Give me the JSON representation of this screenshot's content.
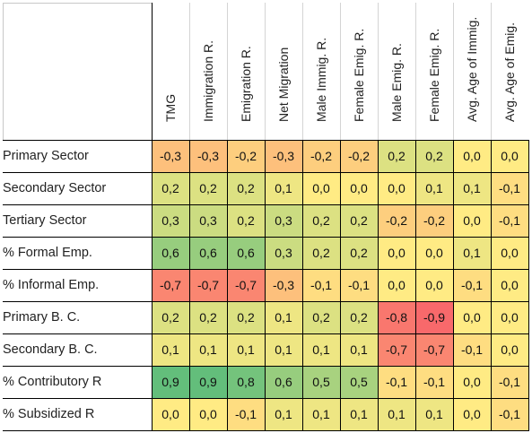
{
  "chart_data": {
    "type": "heatmap",
    "columns": [
      "TMG",
      "Immigration R.",
      "Emigration R.",
      "Net Migration",
      "Male Immig. R.",
      "Female Emig. R.",
      "Male Emig. R.",
      "Female Emig. R.",
      "Avg. Age of Immig.",
      "Avg. Age of Emig."
    ],
    "rows": [
      {
        "label": "Primary Sector",
        "values": [
          -0.3,
          -0.3,
          -0.2,
          -0.3,
          -0.2,
          -0.2,
          0.2,
          0.2,
          0.0,
          0.0
        ],
        "text": [
          "-0,3",
          "-0,3",
          "-0,2",
          "-0,3",
          "-0,2",
          "-0,2",
          "0,2",
          "0,2",
          "0,0",
          "0,0"
        ]
      },
      {
        "label": "Secondary Sector",
        "values": [
          0.2,
          0.2,
          0.2,
          0.1,
          0.0,
          0.0,
          0.0,
          0.1,
          0.1,
          -0.1
        ],
        "text": [
          "0,2",
          "0,2",
          "0,2",
          "0,1",
          "0,0",
          "0,0",
          "0,0",
          "0,1",
          "0,1",
          "-0,1"
        ]
      },
      {
        "label": "Tertiary Sector",
        "values": [
          0.3,
          0.3,
          0.2,
          0.3,
          0.2,
          0.2,
          -0.2,
          -0.2,
          0.0,
          -0.1
        ],
        "text": [
          "0,3",
          "0,3",
          "0,2",
          "0,3",
          "0,2",
          "0,2",
          "-0,2",
          "-0,2",
          "0,0",
          "-0,1"
        ]
      },
      {
        "label": "% Formal Emp.",
        "values": [
          0.6,
          0.6,
          0.6,
          0.3,
          0.2,
          0.2,
          0.0,
          0.0,
          0.1,
          0.0
        ],
        "text": [
          "0,6",
          "0,6",
          "0,6",
          "0,3",
          "0,2",
          "0,2",
          "0,0",
          "0,0",
          "0,1",
          "0,0"
        ]
      },
      {
        "label": "% Informal Emp.",
        "values": [
          -0.7,
          -0.7,
          -0.7,
          -0.3,
          -0.1,
          -0.1,
          0.0,
          0.0,
          -0.1,
          0.0
        ],
        "text": [
          "-0,7",
          "-0,7",
          "-0,7",
          "-0,3",
          "-0,1",
          "-0,1",
          "0,0",
          "0,0",
          "-0,1",
          "0,0"
        ]
      },
      {
        "label": "Primary B. C.",
        "values": [
          0.2,
          0.2,
          0.2,
          0.1,
          0.2,
          0.2,
          -0.8,
          -0.9,
          0.0,
          0.0
        ],
        "text": [
          "0,2",
          "0,2",
          "0,2",
          "0,1",
          "0,2",
          "0,2",
          "-0,8",
          "-0,9",
          "0,0",
          "0,0"
        ]
      },
      {
        "label": "Secondary B. C.",
        "values": [
          0.1,
          0.1,
          0.1,
          0.1,
          0.1,
          0.1,
          -0.7,
          -0.7,
          -0.1,
          0.0
        ],
        "text": [
          "0,1",
          "0,1",
          "0,1",
          "0,1",
          "0,1",
          "0,1",
          "-0,7",
          "-0,7",
          "-0,1",
          "0,0"
        ]
      },
      {
        "label": "% Contributory R",
        "values": [
          0.9,
          0.9,
          0.8,
          0.6,
          0.5,
          0.5,
          -0.1,
          -0.1,
          0.0,
          -0.1
        ],
        "text": [
          "0,9",
          "0,9",
          "0,8",
          "0,6",
          "0,5",
          "0,5",
          "-0,1",
          "-0,1",
          "0,0",
          "-0,1"
        ]
      },
      {
        "label": "% Subsidized R",
        "values": [
          0.0,
          0.0,
          -0.1,
          0.1,
          0.1,
          0.1,
          0.1,
          0.1,
          0.0,
          -0.1
        ],
        "text": [
          "0,0",
          "0,0",
          "-0,1",
          "0,1",
          "0,1",
          "0,1",
          "0,1",
          "0,1",
          "0,0",
          "-0,1"
        ]
      }
    ],
    "value_range": [
      -0.9,
      0.9
    ],
    "colors": {
      "negative": "#f8696b",
      "neutral": "#ffeb84",
      "positive": "#63be7b"
    }
  }
}
